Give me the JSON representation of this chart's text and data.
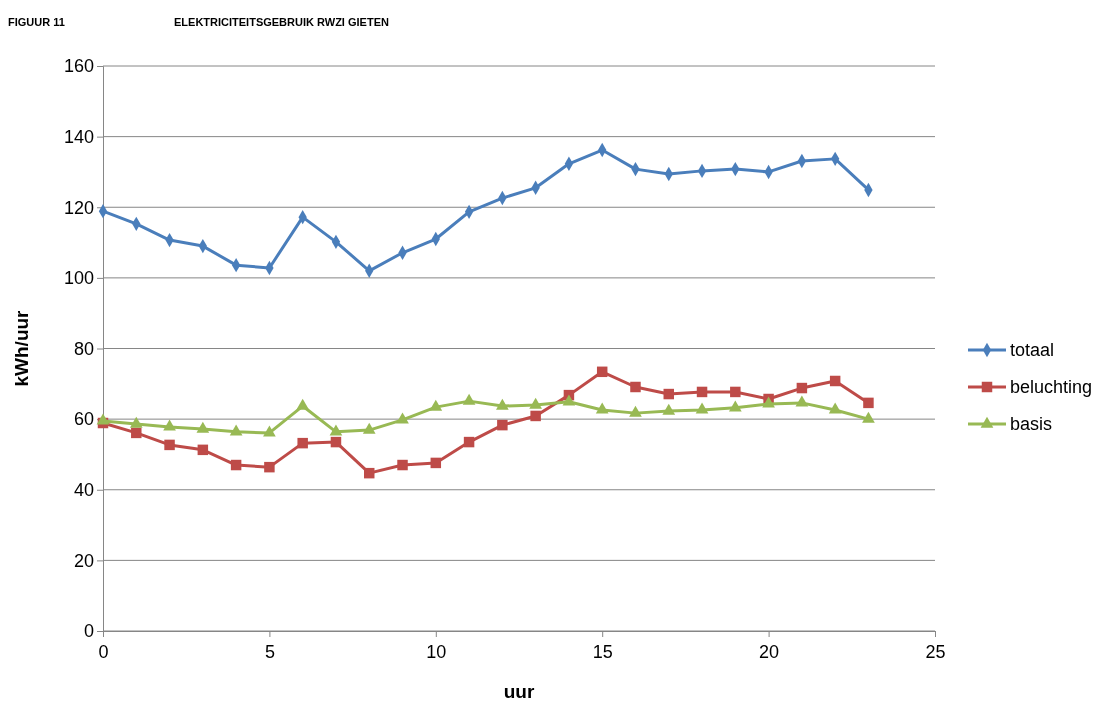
{
  "chart_data": {
    "type": "line",
    "title": "ELEKTRICITEITSGEBRUIK RWZI GIETEN",
    "annotations": [
      "FIGUUR 11"
    ],
    "xlabel": "uur",
    "ylabel": "kWh/uur",
    "x": [
      0,
      1,
      2,
      3,
      4,
      5,
      6,
      7,
      8,
      9,
      10,
      11,
      12,
      13,
      14,
      15,
      16,
      17,
      18,
      19,
      20,
      21,
      22,
      23
    ],
    "series": [
      {
        "name": "totaal",
        "color": "#4a7ebb",
        "marker": "diamond",
        "values": [
          118.9,
          115.3,
          110.7,
          109.0,
          103.6,
          102.8,
          117.2,
          110.2,
          102.0,
          107.1,
          111.0,
          118.7,
          122.6,
          125.5,
          132.3,
          136.2,
          130.8,
          129.4,
          130.3,
          130.8,
          130.0,
          133.1,
          133.7,
          124.9
        ]
      },
      {
        "name": "beluchting",
        "color": "#be4b48",
        "marker": "square",
        "values": [
          58.9,
          56.1,
          52.7,
          51.3,
          47.0,
          46.4,
          53.2,
          53.5,
          44.7,
          47.0,
          47.6,
          53.5,
          58.3,
          60.9,
          66.8,
          73.4,
          69.1,
          67.1,
          67.7,
          67.7,
          65.7,
          68.8,
          70.8,
          64.6
        ]
      },
      {
        "name": "basis",
        "color": "#98b954",
        "marker": "triangle",
        "values": [
          59.5,
          58.6,
          57.8,
          57.2,
          56.4,
          56.1,
          63.7,
          56.4,
          56.9,
          59.8,
          63.4,
          65.1,
          63.7,
          64.0,
          64.9,
          62.6,
          61.7,
          62.3,
          62.6,
          63.2,
          64.3,
          64.6,
          62.6,
          60.0
        ]
      }
    ],
    "xlim": [
      0,
      25
    ],
    "xticks": [
      0,
      5,
      10,
      15,
      20,
      25
    ],
    "ylim": [
      0,
      160
    ],
    "yticks": [
      0,
      20,
      40,
      60,
      80,
      100,
      120,
      140,
      160
    ],
    "grid": "y",
    "legend": "right",
    "line_style": "solid"
  }
}
